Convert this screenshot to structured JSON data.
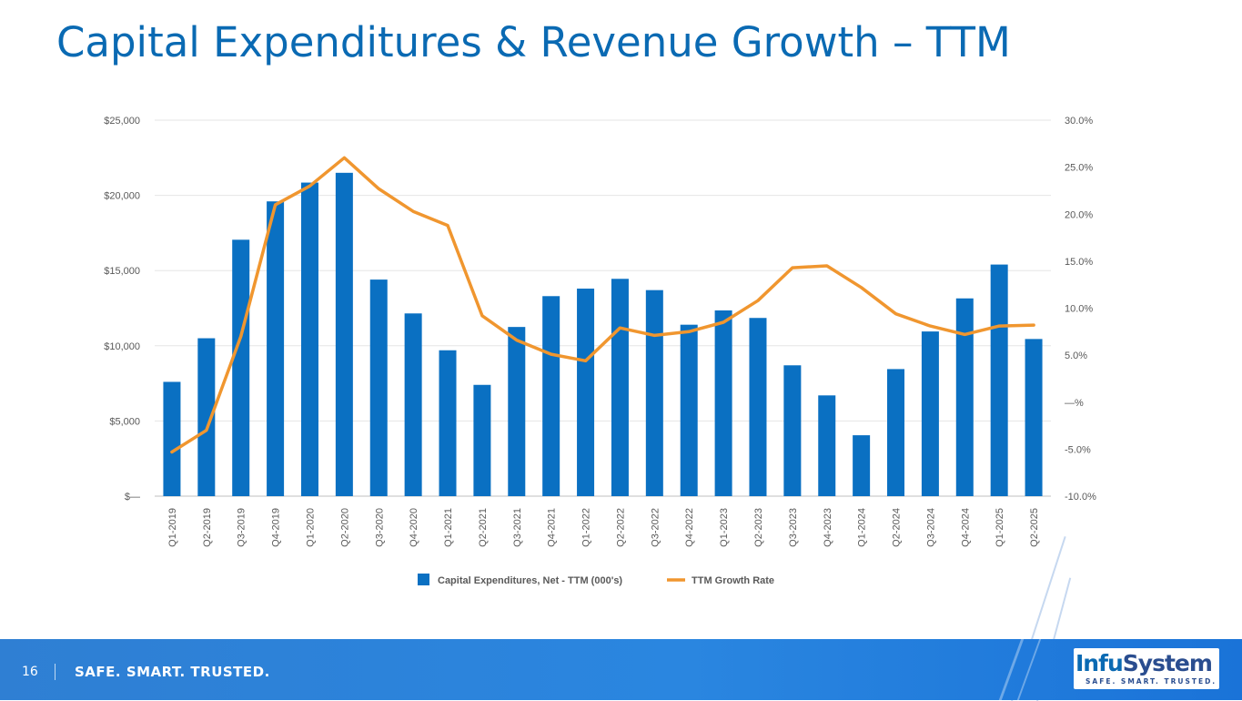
{
  "slide": {
    "title": "Capital Expenditures & Revenue Growth – TTM",
    "page_number": "16",
    "tagline": "SAFE. SMART. TRUSTED.",
    "logo": {
      "brand_prefix": "Infu",
      "brand_suffix": "System",
      "slogan": "SAFE. SMART. TRUSTED."
    }
  },
  "colors": {
    "bar": "#0a70c2",
    "line": "#f0962f",
    "title": "#0a6ab3",
    "footer": "#2a86e0"
  },
  "chart_data": {
    "type": "bar+line",
    "categories": [
      "Q1-2019",
      "Q2-2019",
      "Q3-2019",
      "Q4-2019",
      "Q1-2020",
      "Q2-2020",
      "Q3-2020",
      "Q4-2020",
      "Q1-2021",
      "Q2-2021",
      "Q3-2021",
      "Q4-2021",
      "Q1-2022",
      "Q2-2022",
      "Q3-2022",
      "Q4-2022",
      "Q1-2023",
      "Q2-2023",
      "Q3-2023",
      "Q4-2023",
      "Q1-2024",
      "Q2-2024",
      "Q3-2024",
      "Q4-2024",
      "Q1-2025",
      "Q2-2025"
    ],
    "series": [
      {
        "name": "Capital Expenditures, Net - TTM (000's)",
        "type": "bar",
        "axis": "left",
        "values": [
          7600,
          10500,
          17050,
          19600,
          20850,
          21500,
          14400,
          12150,
          9700,
          7400,
          11250,
          13300,
          13800,
          14450,
          13700,
          11400,
          12350,
          11850,
          8700,
          6700,
          4050,
          8450,
          10950,
          13150,
          15400,
          10450
        ]
      },
      {
        "name": "TTM Growth Rate",
        "type": "line",
        "axis": "right",
        "values": [
          -5.3,
          -3.0,
          7.0,
          21.0,
          23.0,
          26.0,
          22.7,
          20.3,
          18.8,
          9.2,
          6.6,
          5.1,
          4.4,
          7.9,
          7.1,
          7.5,
          8.5,
          10.8,
          14.3,
          14.5,
          12.2,
          9.4,
          8.1,
          7.2,
          8.1,
          8.2
        ]
      }
    ],
    "y_left": {
      "ylim": [
        0,
        25000
      ],
      "ticks": [
        0,
        5000,
        10000,
        15000,
        20000,
        25000
      ],
      "tick_labels": [
        "$—",
        "$5,000",
        "$10,000",
        "$15,000",
        "$20,000",
        "$25,000"
      ]
    },
    "y_right": {
      "ylim": [
        -10,
        30
      ],
      "ticks": [
        -10,
        -5,
        0,
        5,
        10,
        15,
        20,
        25,
        30
      ],
      "tick_labels": [
        "-10.0%",
        "-5.0%",
        "—%",
        "5.0%",
        "10.0%",
        "15.0%",
        "20.0%",
        "25.0%",
        "30.0%"
      ]
    },
    "grid": true,
    "legend_position": "bottom"
  }
}
